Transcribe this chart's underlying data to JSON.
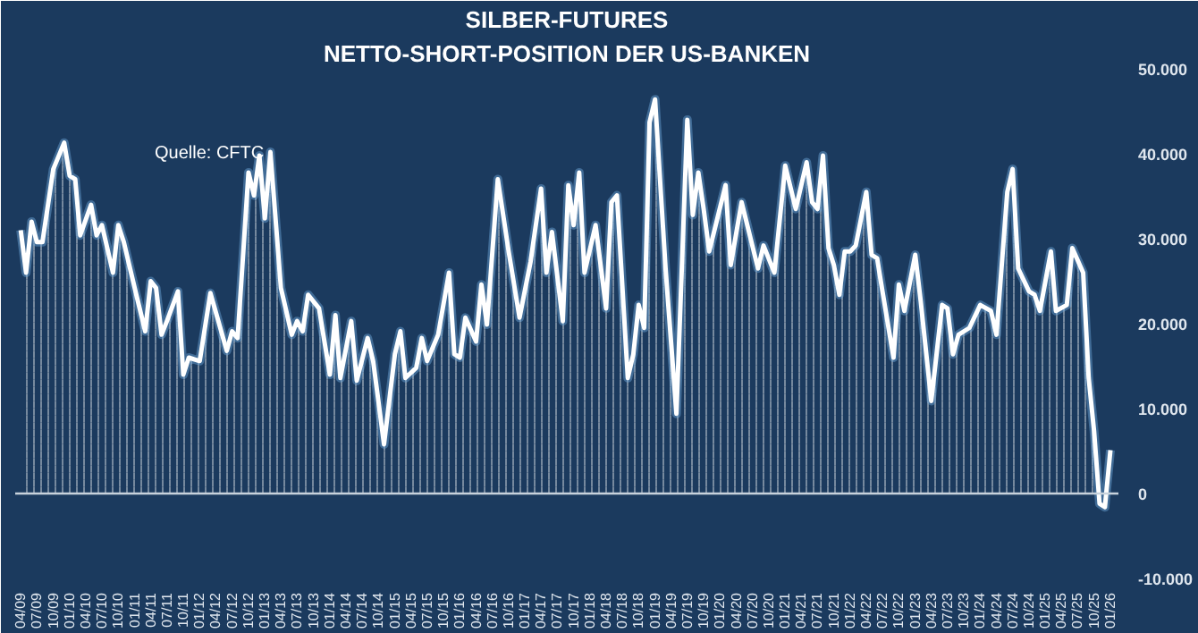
{
  "chart_data": {
    "type": "area",
    "title": "SILBER-FUTURES",
    "subtitle": "NETTO-SHORT-POSITION DER US-BANKEN",
    "annotations": [
      "Quelle: CFTC"
    ],
    "x": [
      "2009-04",
      "2009-05",
      "2009-06",
      "2009-07",
      "2009-08",
      "2009-10",
      "2009-12",
      "2010-01",
      "2010-02",
      "2010-03",
      "2010-05",
      "2010-06",
      "2010-07",
      "2010-09",
      "2010-10",
      "2010-11",
      "2011-01",
      "2011-03",
      "2011-04",
      "2011-05",
      "2011-06",
      "2011-07",
      "2011-09",
      "2011-10",
      "2011-11",
      "2012-01",
      "2012-03",
      "2012-06",
      "2012-07",
      "2012-08",
      "2012-10",
      "2012-11",
      "2012-12",
      "2013-01",
      "2013-02",
      "2013-04",
      "2013-06",
      "2013-07",
      "2013-08",
      "2013-09",
      "2013-11",
      "2014-01",
      "2014-02",
      "2014-03",
      "2014-05",
      "2014-06",
      "2014-08",
      "2014-09",
      "2014-11",
      "2015-01",
      "2015-02",
      "2015-03",
      "2015-05",
      "2015-06",
      "2015-07",
      "2015-09",
      "2015-11",
      "2015-12",
      "2016-01",
      "2016-02",
      "2016-04",
      "2016-05",
      "2016-06",
      "2016-08",
      "2016-10",
      "2016-12",
      "2017-02",
      "2017-04",
      "2017-05",
      "2017-06",
      "2017-08",
      "2017-09",
      "2017-10",
      "2017-11",
      "2017-12",
      "2018-02",
      "2018-04",
      "2018-05",
      "2018-06",
      "2018-08",
      "2018-09",
      "2018-10",
      "2018-11",
      "2018-12",
      "2019-01",
      "2019-03",
      "2019-05",
      "2019-07",
      "2019-08",
      "2019-09",
      "2019-10",
      "2019-11",
      "2020-02",
      "2020-03",
      "2020-05",
      "2020-08",
      "2020-09",
      "2020-11",
      "2021-01",
      "2021-03",
      "2021-05",
      "2021-06",
      "2021-07",
      "2021-08",
      "2021-09",
      "2021-10",
      "2021-11",
      "2021-12",
      "2022-01",
      "2022-02",
      "2022-04",
      "2022-05",
      "2022-06",
      "2022-07",
      "2022-09",
      "2022-10",
      "2022-11",
      "2023-01",
      "2023-02",
      "2023-04",
      "2023-06",
      "2023-07",
      "2023-08",
      "2023-09",
      "2023-11",
      "2024-01",
      "2024-03",
      "2024-04",
      "2024-06",
      "2024-07",
      "2024-08",
      "2024-10",
      "2024-11",
      "2024-12",
      "2025-02",
      "2025-03",
      "2025-05",
      "2025-06",
      "2025-08",
      "2025-09",
      "2025-10",
      "2025-11",
      "2025-12",
      "2026-01"
    ],
    "series": [
      {
        "color": "#ffffff",
        "values": [
          31000,
          26000,
          32000,
          29600,
          29600,
          38200,
          41300,
          37400,
          37000,
          30400,
          34000,
          30400,
          31600,
          26000,
          31600,
          29600,
          24200,
          19100,
          25000,
          24200,
          18700,
          20300,
          23800,
          14000,
          16000,
          15600,
          23600,
          16800,
          19100,
          18300,
          37800,
          35100,
          39800,
          32400,
          40200,
          24200,
          18700,
          20300,
          19100,
          23400,
          21800,
          14000,
          21000,
          13600,
          20300,
          13300,
          18300,
          15600,
          5800,
          16400,
          19100,
          13600,
          14800,
          18300,
          15600,
          18700,
          26000,
          16400,
          16000,
          20700,
          17900,
          24600,
          19900,
          37000,
          28500,
          20700,
          27300,
          35900,
          26000,
          30800,
          20300,
          36300,
          31600,
          37800,
          26000,
          31600,
          21800,
          34300,
          35100,
          13600,
          16400,
          22200,
          19500,
          43700,
          46400,
          26500,
          9400,
          44000,
          32800,
          37800,
          33500,
          28500,
          36300,
          26900,
          34300,
          26500,
          29200,
          26000,
          38600,
          33500,
          39000,
          34300,
          33500,
          39800,
          28900,
          26900,
          23400,
          28500,
          28500,
          29200,
          35500,
          28100,
          27700,
          23800,
          16000,
          24600,
          21500,
          28100,
          22600,
          10900,
          22200,
          21800,
          16400,
          18700,
          19500,
          22200,
          21500,
          18700,
          35500,
          38200,
          26500,
          23800,
          23400,
          21500,
          28500,
          21500,
          22200,
          28900,
          26000,
          13600,
          7400,
          -1200,
          -1600,
          5100
        ]
      }
    ],
    "xlim": [
      "2009-03-01",
      "2026-02-15"
    ],
    "ylim": [
      -10000,
      50000
    ],
    "yticks": [
      {
        "value": -10000,
        "label": "-10.000"
      },
      {
        "value": 0,
        "label": "0"
      },
      {
        "value": 10000,
        "label": "10.000"
      },
      {
        "value": 20000,
        "label": "20.000"
      },
      {
        "value": 30000,
        "label": "30.000"
      },
      {
        "value": 40000,
        "label": "40.000"
      },
      {
        "value": 50000,
        "label": "50.000"
      }
    ],
    "xticks": [
      {
        "value": "2009-04",
        "label": "04/09"
      },
      {
        "value": "2009-07",
        "label": "07/09"
      },
      {
        "value": "2009-10",
        "label": "10/09"
      },
      {
        "value": "2010-01",
        "label": "01/10"
      },
      {
        "value": "2010-04",
        "label": "04/10"
      },
      {
        "value": "2010-07",
        "label": "07/10"
      },
      {
        "value": "2010-10",
        "label": "10/10"
      },
      {
        "value": "2011-01",
        "label": "01/11"
      },
      {
        "value": "2011-04",
        "label": "04/11"
      },
      {
        "value": "2011-07",
        "label": "07/11"
      },
      {
        "value": "2011-10",
        "label": "10/11"
      },
      {
        "value": "2012-01",
        "label": "01/12"
      },
      {
        "value": "2012-04",
        "label": "04/12"
      },
      {
        "value": "2012-07",
        "label": "07/12"
      },
      {
        "value": "2012-10",
        "label": "10/12"
      },
      {
        "value": "2013-01",
        "label": "01/13"
      },
      {
        "value": "2013-04",
        "label": "04/13"
      },
      {
        "value": "2013-07",
        "label": "07/13"
      },
      {
        "value": "2013-10",
        "label": "10/13"
      },
      {
        "value": "2014-01",
        "label": "01/14"
      },
      {
        "value": "2014-04",
        "label": "04/14"
      },
      {
        "value": "2014-07",
        "label": "07/14"
      },
      {
        "value": "2014-10",
        "label": "10/14"
      },
      {
        "value": "2015-01",
        "label": "01/15"
      },
      {
        "value": "2015-04",
        "label": "04/15"
      },
      {
        "value": "2015-07",
        "label": "07/15"
      },
      {
        "value": "2015-10",
        "label": "10/15"
      },
      {
        "value": "2016-01",
        "label": "01/16"
      },
      {
        "value": "2016-04",
        "label": "04/16"
      },
      {
        "value": "2016-07",
        "label": "07/16"
      },
      {
        "value": "2016-10",
        "label": "10/16"
      },
      {
        "value": "2017-01",
        "label": "01/17"
      },
      {
        "value": "2017-04",
        "label": "04/17"
      },
      {
        "value": "2017-07",
        "label": "07/17"
      },
      {
        "value": "2017-10",
        "label": "10/17"
      },
      {
        "value": "2018-01",
        "label": "01/18"
      },
      {
        "value": "2018-04",
        "label": "04/18"
      },
      {
        "value": "2018-07",
        "label": "07/18"
      },
      {
        "value": "2018-10",
        "label": "10/18"
      },
      {
        "value": "2019-01",
        "label": "01/19"
      },
      {
        "value": "2019-04",
        "label": "04/19"
      },
      {
        "value": "2019-07",
        "label": "07/19"
      },
      {
        "value": "2019-10",
        "label": "10/19"
      },
      {
        "value": "2020-01",
        "label": "01/20"
      },
      {
        "value": "2020-04",
        "label": "04/20"
      },
      {
        "value": "2020-07",
        "label": "07/20"
      },
      {
        "value": "2020-10",
        "label": "10/20"
      },
      {
        "value": "2021-01",
        "label": "01/21"
      },
      {
        "value": "2021-04",
        "label": "04/21"
      },
      {
        "value": "2021-07",
        "label": "07/21"
      },
      {
        "value": "2021-10",
        "label": "10/21"
      },
      {
        "value": "2022-01",
        "label": "01/22"
      },
      {
        "value": "2022-04",
        "label": "04/22"
      },
      {
        "value": "2022-07",
        "label": "07/22"
      },
      {
        "value": "2022-10",
        "label": "10/22"
      },
      {
        "value": "2023-01",
        "label": "01/23"
      },
      {
        "value": "2023-04",
        "label": "04/23"
      },
      {
        "value": "2023-07",
        "label": "07/23"
      },
      {
        "value": "2023-10",
        "label": "10/23"
      },
      {
        "value": "2024-01",
        "label": "01/24"
      },
      {
        "value": "2024-04",
        "label": "04/24"
      },
      {
        "value": "2024-07",
        "label": "07/24"
      },
      {
        "value": "2024-10",
        "label": "10/24"
      },
      {
        "value": "2025-01",
        "label": "01/25"
      },
      {
        "value": "2025-04",
        "label": "04/25"
      },
      {
        "value": "2025-07",
        "label": "07/25"
      },
      {
        "value": "2025-10",
        "label": "10/25"
      },
      {
        "value": "2026-01",
        "label": "01/26"
      }
    ],
    "marker": "none",
    "line_style": "solid"
  }
}
